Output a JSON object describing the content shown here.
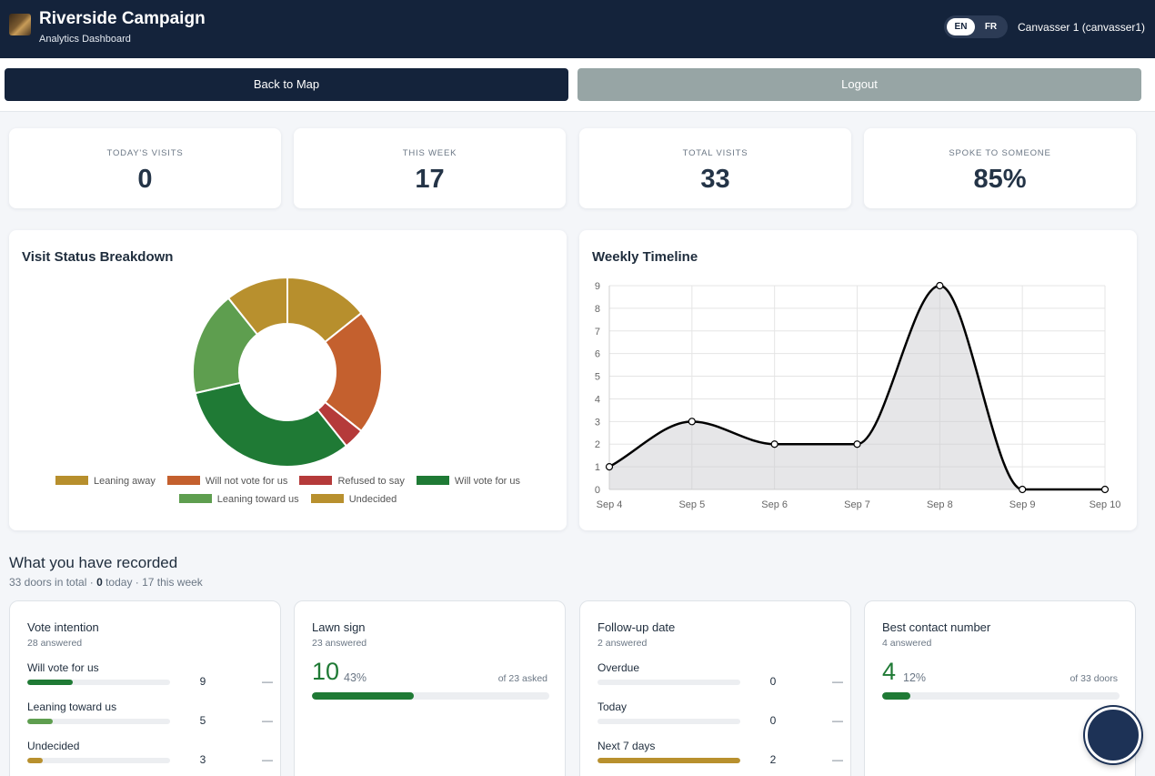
{
  "header": {
    "title": "Riverside Campaign",
    "subtitle": "Analytics Dashboard",
    "lang_en": "EN",
    "lang_fr": "FR",
    "user": "Canvasser 1 (canvasser1)"
  },
  "actions": {
    "back_label": "Back to Map",
    "logout_label": "Logout"
  },
  "stats": [
    {
      "label": "TODAY'S VISITS",
      "value": "0"
    },
    {
      "label": "THIS WEEK",
      "value": "17"
    },
    {
      "label": "TOTAL VISITS",
      "value": "33"
    },
    {
      "label": "SPOKE TO SOMEONE",
      "value": "85%"
    }
  ],
  "colors": {
    "leaning_away": "#b78f2d",
    "will_not_vote": "#c4602e",
    "refused": "#b53a3a",
    "will_vote": "#1f7a35",
    "leaning_toward": "#5e9e4f",
    "undecided": "#b8902e",
    "header_bg": "#14233b"
  },
  "chart_data": [
    {
      "type": "pie",
      "title": "Visit Status Breakdown",
      "categories": [
        "Leaning away",
        "Will not vote for us",
        "Refused to say",
        "Will vote for us",
        "Leaning toward us",
        "Undecided"
      ],
      "values": [
        4,
        6,
        1,
        9,
        5,
        3
      ],
      "legend": "bottom"
    },
    {
      "type": "area",
      "title": "Weekly Timeline",
      "x": [
        "Sep 4",
        "Sep 5",
        "Sep 6",
        "Sep 7",
        "Sep 8",
        "Sep 9",
        "Sep 10"
      ],
      "values": [
        1,
        3,
        2,
        2,
        9,
        0,
        0
      ],
      "ylim": [
        0,
        9
      ],
      "yticks": [
        0,
        1,
        2,
        3,
        4,
        5,
        6,
        7,
        8,
        9
      ],
      "grid": true
    }
  ],
  "recorded": {
    "title": "What you have recorded",
    "summary_total": "33 doors in total · ",
    "summary_today_num": "0",
    "summary_rest": " today · 17 this week",
    "vote": {
      "title": "Vote intention",
      "answered": "28 answered",
      "rows": [
        {
          "label": "Will vote for us",
          "count": "9",
          "fraction": 0.32
        },
        {
          "label": "Leaning toward us",
          "count": "5",
          "fraction": 0.18
        },
        {
          "label": "Undecided",
          "count": "3",
          "fraction": 0.11
        }
      ]
    },
    "lawn": {
      "title": "Lawn sign",
      "answered": "23 answered",
      "number": "10",
      "percent": "43%",
      "of_text": "of 23 asked",
      "fraction": 0.43
    },
    "followup": {
      "title": "Follow-up date",
      "answered": "2 answered",
      "rows": [
        {
          "label": "Overdue",
          "count": "0",
          "fraction": 0
        },
        {
          "label": "Today",
          "count": "0",
          "fraction": 0
        },
        {
          "label": "Next 7 days",
          "count": "2",
          "fraction": 1
        }
      ]
    },
    "contact": {
      "title": "Best contact number",
      "answered": "4 answered",
      "number": "4",
      "percent": "12%",
      "of_text": "of 33 doors",
      "fraction": 0.12
    },
    "dash": "—"
  }
}
